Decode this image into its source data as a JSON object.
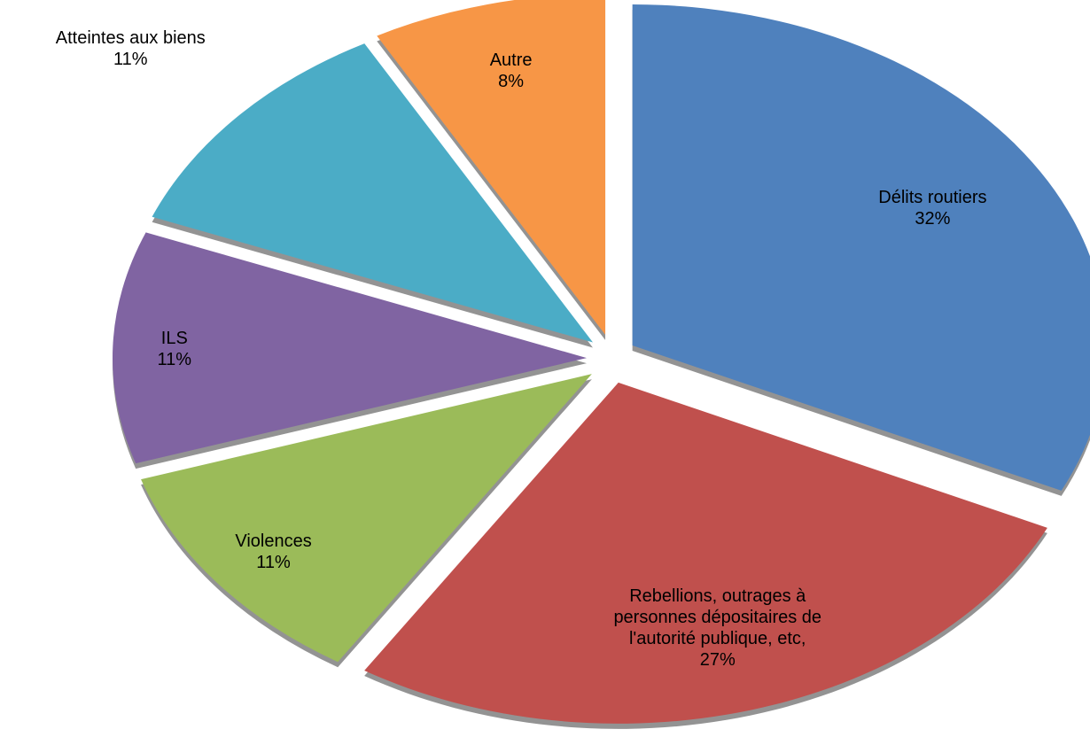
{
  "chart_data": {
    "type": "pie",
    "categories": [
      "Délits routiers",
      "Rebellions, outrages à personnes dépositaires de l'autorité publique, etc,",
      "Violences",
      "ILS",
      "Atteintes aux biens",
      "Autre"
    ],
    "values": [
      32,
      27,
      11,
      11,
      11,
      8
    ],
    "value_labels": [
      "32%",
      "27%",
      "11%",
      "11%",
      "11%",
      "8%"
    ],
    "colors": [
      "#4f81bd",
      "#c0504d",
      "#9bbb59",
      "#8064a2",
      "#4bacc6",
      "#f79646"
    ]
  }
}
